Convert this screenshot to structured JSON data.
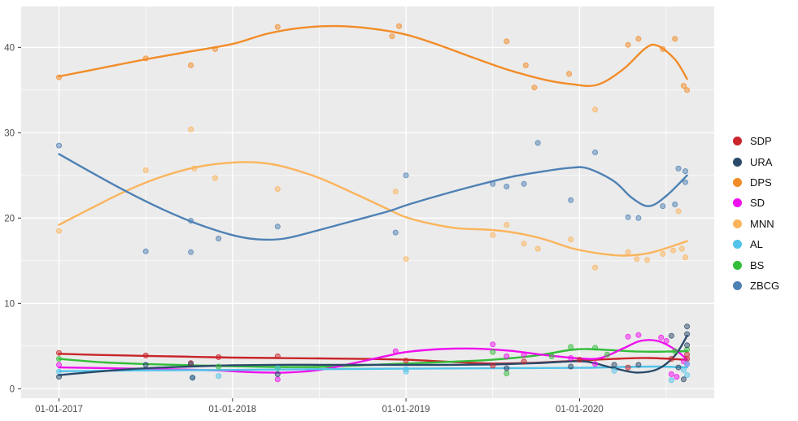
{
  "figure": {
    "background": "#ffffff",
    "panel_background": "#ebebeb",
    "grid_color": "#ffffff",
    "axis_text_color": "#4d4d4d",
    "tick_mark_color": "#333333"
  },
  "legend": {
    "position": "right",
    "items": [
      {
        "label": "SDP",
        "color": "#c9252b"
      },
      {
        "label": "URA",
        "color": "#2b4a6b"
      },
      {
        "label": "DPS",
        "color": "#f28c28"
      },
      {
        "label": "SD",
        "color": "#ef0fef"
      },
      {
        "label": "MNN",
        "color": "#fbb45c"
      },
      {
        "label": "AL",
        "color": "#52c3e9"
      },
      {
        "label": "BS",
        "color": "#33bd39"
      },
      {
        "label": "ZBCG",
        "color": "#4e81b4"
      }
    ]
  },
  "chart_data": {
    "type": "scatter",
    "subtype": "scatter-with-loess-smooth",
    "title": "",
    "xlabel": "",
    "ylabel": "",
    "x_tick_labels": [
      "01-01-2017",
      "01-01-2018",
      "01-01-2019",
      "01-01-2020"
    ],
    "x_tick_years": [
      2017,
      2018,
      2019,
      2020
    ],
    "x_minor_years": [
      2017.5,
      2018.5,
      2019.5,
      2020.5
    ],
    "y_ticks": [
      0,
      10,
      20,
      30,
      40
    ],
    "y_minor_ticks": [
      5,
      15,
      25,
      35
    ],
    "xlim": [
      2016.78,
      2020.78
    ],
    "ylim": [
      -0.9,
      44.6
    ],
    "grid": true,
    "legend_position": "right",
    "draw_order": [
      "DPS",
      "MNN",
      "ZBCG",
      "SDP",
      "BS",
      "SD",
      "AL",
      "URA"
    ],
    "series": [
      {
        "name": "SDP",
        "color": "#c9252b",
        "line": [
          [
            2017.0,
            4.1
          ],
          [
            2017.25,
            3.95
          ],
          [
            2017.5,
            3.85
          ],
          [
            2017.75,
            3.75
          ],
          [
            2018.0,
            3.65
          ],
          [
            2018.25,
            3.6
          ],
          [
            2018.5,
            3.55
          ],
          [
            2018.75,
            3.5
          ],
          [
            2019.0,
            3.4
          ],
          [
            2019.25,
            3.15
          ],
          [
            2019.5,
            2.95
          ],
          [
            2019.75,
            3.05
          ],
          [
            2020.0,
            3.3
          ],
          [
            2020.2,
            3.5
          ],
          [
            2020.4,
            3.6
          ],
          [
            2020.62,
            3.4
          ]
        ],
        "points": [
          [
            2017.0,
            4.2
          ],
          [
            2017.5,
            3.9
          ],
          [
            2017.76,
            3.0
          ],
          [
            2017.92,
            3.7
          ],
          [
            2018.26,
            3.8
          ],
          [
            2019.0,
            3.3
          ],
          [
            2019.5,
            2.7
          ],
          [
            2019.68,
            3.2
          ],
          [
            2020.0,
            3.4
          ],
          [
            2020.28,
            2.5
          ],
          [
            2020.53,
            3.5
          ],
          [
            2020.62,
            4.0
          ],
          [
            2020.62,
            3.5
          ]
        ]
      },
      {
        "name": "URA",
        "color": "#2b4a6b",
        "line": [
          [
            2017.0,
            1.6
          ],
          [
            2017.25,
            2.05
          ],
          [
            2017.5,
            2.4
          ],
          [
            2017.75,
            2.6
          ],
          [
            2018.0,
            2.75
          ],
          [
            2018.25,
            2.8
          ],
          [
            2018.5,
            2.8
          ],
          [
            2018.75,
            2.8
          ],
          [
            2019.0,
            2.8
          ],
          [
            2019.25,
            2.8
          ],
          [
            2019.5,
            2.85
          ],
          [
            2019.75,
            3.0
          ],
          [
            2019.95,
            3.2
          ],
          [
            2020.05,
            3.15
          ],
          [
            2020.2,
            2.4
          ],
          [
            2020.33,
            1.9
          ],
          [
            2020.45,
            2.3
          ],
          [
            2020.55,
            3.9
          ],
          [
            2020.62,
            6.2
          ]
        ],
        "points": [
          [
            2017.0,
            1.4
          ],
          [
            2017.5,
            2.8
          ],
          [
            2017.76,
            2.9
          ],
          [
            2017.77,
            1.3
          ],
          [
            2018.26,
            1.7
          ],
          [
            2019.58,
            2.4
          ],
          [
            2019.95,
            2.6
          ],
          [
            2020.2,
            2.8
          ],
          [
            2020.34,
            2.8
          ],
          [
            2020.53,
            6.2
          ],
          [
            2020.57,
            2.5
          ],
          [
            2020.6,
            1.1
          ],
          [
            2020.62,
            7.3
          ],
          [
            2020.62,
            6.4
          ],
          [
            2020.62,
            5.1
          ]
        ]
      },
      {
        "name": "DPS",
        "color": "#f28c28",
        "line": [
          [
            2017.0,
            36.6
          ],
          [
            2017.25,
            37.6
          ],
          [
            2017.5,
            38.6
          ],
          [
            2017.75,
            39.5
          ],
          [
            2018.0,
            40.4
          ],
          [
            2018.2,
            41.6
          ],
          [
            2018.4,
            42.3
          ],
          [
            2018.6,
            42.5
          ],
          [
            2018.8,
            42.2
          ],
          [
            2019.0,
            41.5
          ],
          [
            2019.2,
            40.2
          ],
          [
            2019.4,
            38.7
          ],
          [
            2019.6,
            37.3
          ],
          [
            2019.8,
            36.2
          ],
          [
            2019.95,
            35.7
          ],
          [
            2020.1,
            35.6
          ],
          [
            2020.25,
            37.4
          ],
          [
            2020.38,
            39.9
          ],
          [
            2020.45,
            40.2
          ],
          [
            2020.55,
            38.6
          ],
          [
            2020.62,
            36.3
          ]
        ],
        "points": [
          [
            2017.0,
            36.5
          ],
          [
            2017.5,
            38.7
          ],
          [
            2017.76,
            37.9
          ],
          [
            2017.9,
            39.8
          ],
          [
            2018.26,
            42.4
          ],
          [
            2018.92,
            41.3
          ],
          [
            2018.96,
            42.5
          ],
          [
            2019.58,
            40.7
          ],
          [
            2019.69,
            37.9
          ],
          [
            2019.74,
            35.3
          ],
          [
            2019.94,
            36.9
          ],
          [
            2020.28,
            40.3
          ],
          [
            2020.34,
            41.0
          ],
          [
            2020.48,
            39.8
          ],
          [
            2020.55,
            41.0
          ],
          [
            2020.6,
            35.5
          ],
          [
            2020.62,
            35.0
          ]
        ]
      },
      {
        "name": "SD",
        "color": "#ef0fef",
        "line": [
          [
            2017.0,
            2.5
          ],
          [
            2017.3,
            2.4
          ],
          [
            2017.6,
            2.3
          ],
          [
            2017.9,
            2.15
          ],
          [
            2018.1,
            1.95
          ],
          [
            2018.3,
            1.9
          ],
          [
            2018.5,
            2.2
          ],
          [
            2018.7,
            3.0
          ],
          [
            2018.9,
            3.9
          ],
          [
            2019.0,
            4.3
          ],
          [
            2019.2,
            4.65
          ],
          [
            2019.4,
            4.7
          ],
          [
            2019.6,
            4.45
          ],
          [
            2019.8,
            3.95
          ],
          [
            2020.0,
            3.55
          ],
          [
            2020.12,
            3.6
          ],
          [
            2020.25,
            4.7
          ],
          [
            2020.35,
            5.6
          ],
          [
            2020.45,
            5.6
          ],
          [
            2020.55,
            4.6
          ],
          [
            2020.62,
            3.4
          ]
        ],
        "points": [
          [
            2017.0,
            2.8
          ],
          [
            2018.26,
            1.1
          ],
          [
            2018.94,
            4.4
          ],
          [
            2019.5,
            5.2
          ],
          [
            2019.58,
            3.8
          ],
          [
            2019.68,
            4.0
          ],
          [
            2019.95,
            3.6
          ],
          [
            2020.09,
            2.9
          ],
          [
            2020.28,
            6.1
          ],
          [
            2020.34,
            6.3
          ],
          [
            2020.47,
            6.0
          ],
          [
            2020.5,
            5.6
          ],
          [
            2020.53,
            1.7
          ],
          [
            2020.56,
            1.4
          ],
          [
            2020.6,
            3.2
          ],
          [
            2020.62,
            2.9
          ]
        ]
      },
      {
        "name": "MNN",
        "color": "#fbb45c",
        "line": [
          [
            2017.0,
            19.2
          ],
          [
            2017.2,
            21.3
          ],
          [
            2017.4,
            23.3
          ],
          [
            2017.6,
            24.9
          ],
          [
            2017.8,
            26.0
          ],
          [
            2018.0,
            26.5
          ],
          [
            2018.15,
            26.5
          ],
          [
            2018.3,
            26.0
          ],
          [
            2018.5,
            24.7
          ],
          [
            2018.7,
            22.9
          ],
          [
            2018.9,
            21.0
          ],
          [
            2019.0,
            20.1
          ],
          [
            2019.15,
            19.3
          ],
          [
            2019.3,
            18.8
          ],
          [
            2019.5,
            18.6
          ],
          [
            2019.65,
            18.2
          ],
          [
            2019.8,
            17.5
          ],
          [
            2019.95,
            16.5
          ],
          [
            2020.1,
            15.9
          ],
          [
            2020.25,
            15.6
          ],
          [
            2020.4,
            15.9
          ],
          [
            2020.55,
            16.8
          ],
          [
            2020.62,
            17.3
          ]
        ],
        "points": [
          [
            2017.0,
            18.5
          ],
          [
            2017.5,
            25.6
          ],
          [
            2017.76,
            30.4
          ],
          [
            2017.78,
            25.8
          ],
          [
            2017.9,
            24.7
          ],
          [
            2018.26,
            23.4
          ],
          [
            2018.94,
            23.1
          ],
          [
            2019.0,
            15.2
          ],
          [
            2019.5,
            18.0
          ],
          [
            2019.58,
            19.2
          ],
          [
            2019.68,
            17.0
          ],
          [
            2019.76,
            16.4
          ],
          [
            2019.95,
            17.5
          ],
          [
            2020.09,
            32.7
          ],
          [
            2020.09,
            14.2
          ],
          [
            2020.28,
            16.0
          ],
          [
            2020.33,
            15.2
          ],
          [
            2020.39,
            15.1
          ],
          [
            2020.48,
            15.8
          ],
          [
            2020.54,
            16.2
          ],
          [
            2020.57,
            20.8
          ],
          [
            2020.59,
            16.4
          ],
          [
            2020.61,
            15.4
          ]
        ]
      },
      {
        "name": "AL",
        "color": "#52c3e9",
        "line": [
          [
            2017.0,
            2.05
          ],
          [
            2017.5,
            2.15
          ],
          [
            2018.0,
            2.2
          ],
          [
            2018.5,
            2.3
          ],
          [
            2019.0,
            2.35
          ],
          [
            2019.5,
            2.4
          ],
          [
            2020.0,
            2.45
          ],
          [
            2020.25,
            2.55
          ],
          [
            2020.45,
            2.6
          ],
          [
            2020.62,
            2.5
          ]
        ],
        "points": [
          [
            2017.0,
            2.0
          ],
          [
            2017.77,
            1.3
          ],
          [
            2017.92,
            1.5
          ],
          [
            2018.26,
            2.4
          ],
          [
            2019.0,
            2.3
          ],
          [
            2019.0,
            2.0
          ],
          [
            2020.2,
            2.1
          ],
          [
            2020.53,
            1.0
          ],
          [
            2020.6,
            2.2
          ],
          [
            2020.62,
            2.9
          ],
          [
            2020.62,
            1.6
          ]
        ]
      },
      {
        "name": "BS",
        "color": "#33bd39",
        "line": [
          [
            2017.0,
            3.5
          ],
          [
            2017.25,
            3.1
          ],
          [
            2017.5,
            2.9
          ],
          [
            2017.75,
            2.75
          ],
          [
            2018.0,
            2.65
          ],
          [
            2018.25,
            2.55
          ],
          [
            2018.5,
            2.55
          ],
          [
            2018.75,
            2.75
          ],
          [
            2019.0,
            2.95
          ],
          [
            2019.25,
            3.15
          ],
          [
            2019.5,
            3.4
          ],
          [
            2019.75,
            3.9
          ],
          [
            2019.95,
            4.55
          ],
          [
            2020.05,
            4.65
          ],
          [
            2020.2,
            4.5
          ],
          [
            2020.35,
            4.35
          ],
          [
            2020.5,
            4.35
          ],
          [
            2020.62,
            4.4
          ]
        ],
        "points": [
          [
            2017.0,
            3.5
          ],
          [
            2017.92,
            2.6
          ],
          [
            2018.26,
            2.4
          ],
          [
            2019.5,
            4.3
          ],
          [
            2019.58,
            1.8
          ],
          [
            2019.84,
            3.8
          ],
          [
            2019.95,
            4.9
          ],
          [
            2020.09,
            4.8
          ],
          [
            2020.16,
            4.0
          ],
          [
            2020.55,
            4.4
          ],
          [
            2020.62,
            4.6
          ]
        ]
      },
      {
        "name": "ZBCG",
        "color": "#4e81b4",
        "line": [
          [
            2017.0,
            27.5
          ],
          [
            2017.2,
            25.2
          ],
          [
            2017.4,
            23.0
          ],
          [
            2017.6,
            21.0
          ],
          [
            2017.8,
            19.3
          ],
          [
            2018.0,
            18.0
          ],
          [
            2018.15,
            17.5
          ],
          [
            2018.3,
            17.6
          ],
          [
            2018.5,
            18.6
          ],
          [
            2018.7,
            19.7
          ],
          [
            2018.9,
            20.8
          ],
          [
            2019.0,
            21.5
          ],
          [
            2019.2,
            22.7
          ],
          [
            2019.4,
            23.8
          ],
          [
            2019.6,
            24.8
          ],
          [
            2019.8,
            25.5
          ],
          [
            2019.95,
            25.9
          ],
          [
            2020.05,
            25.8
          ],
          [
            2020.2,
            24.3
          ],
          [
            2020.3,
            22.4
          ],
          [
            2020.4,
            21.4
          ],
          [
            2020.5,
            22.6
          ],
          [
            2020.62,
            25.0
          ]
        ],
        "points": [
          [
            2017.0,
            28.5
          ],
          [
            2017.5,
            16.1
          ],
          [
            2017.76,
            19.7
          ],
          [
            2017.76,
            16.0
          ],
          [
            2017.92,
            17.6
          ],
          [
            2018.26,
            19.0
          ],
          [
            2018.94,
            18.3
          ],
          [
            2019.0,
            25.0
          ],
          [
            2019.5,
            24.0
          ],
          [
            2019.58,
            23.7
          ],
          [
            2019.68,
            24.0
          ],
          [
            2019.76,
            28.8
          ],
          [
            2019.95,
            22.1
          ],
          [
            2020.09,
            27.7
          ],
          [
            2020.28,
            20.1
          ],
          [
            2020.34,
            20.0
          ],
          [
            2020.48,
            21.4
          ],
          [
            2020.55,
            21.6
          ],
          [
            2020.57,
            25.8
          ],
          [
            2020.61,
            25.5
          ],
          [
            2020.61,
            24.2
          ]
        ]
      }
    ]
  }
}
